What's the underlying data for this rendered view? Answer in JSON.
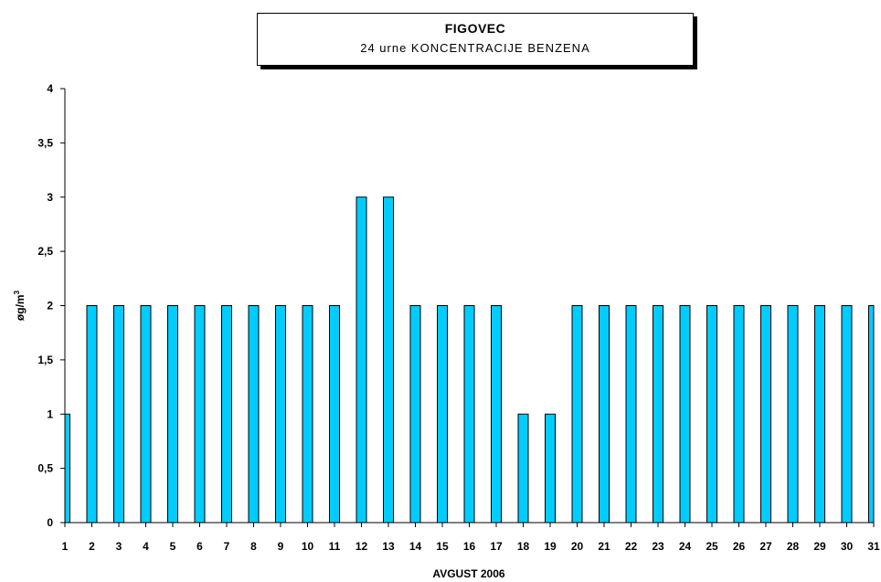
{
  "chart_data": {
    "type": "bar",
    "title": "FIGOVEC",
    "subtitle": "24 urne KONCENTRACIJE BENZENA",
    "xlabel": "AVGUST 2006",
    "ylabel": "øg/m",
    "ylabel_superscript": "3",
    "ylim": [
      0,
      4
    ],
    "yticks": [
      "0",
      "0,5",
      "1",
      "1,5",
      "2",
      "2,5",
      "3",
      "3,5",
      "4"
    ],
    "categories": [
      "1",
      "2",
      "3",
      "4",
      "5",
      "6",
      "7",
      "8",
      "9",
      "10",
      "11",
      "12",
      "13",
      "14",
      "15",
      "16",
      "17",
      "18",
      "19",
      "20",
      "21",
      "22",
      "23",
      "24",
      "25",
      "26",
      "27",
      "28",
      "29",
      "30",
      "31"
    ],
    "values": [
      1,
      2,
      2,
      2,
      2,
      2,
      2,
      2,
      2,
      2,
      2,
      3,
      3,
      2,
      2,
      2,
      2,
      1,
      1,
      2,
      2,
      2,
      2,
      2,
      2,
      2,
      2,
      2,
      2,
      2,
      2
    ],
    "bar_color": "#00ccff",
    "grid": false,
    "legend": "none"
  }
}
